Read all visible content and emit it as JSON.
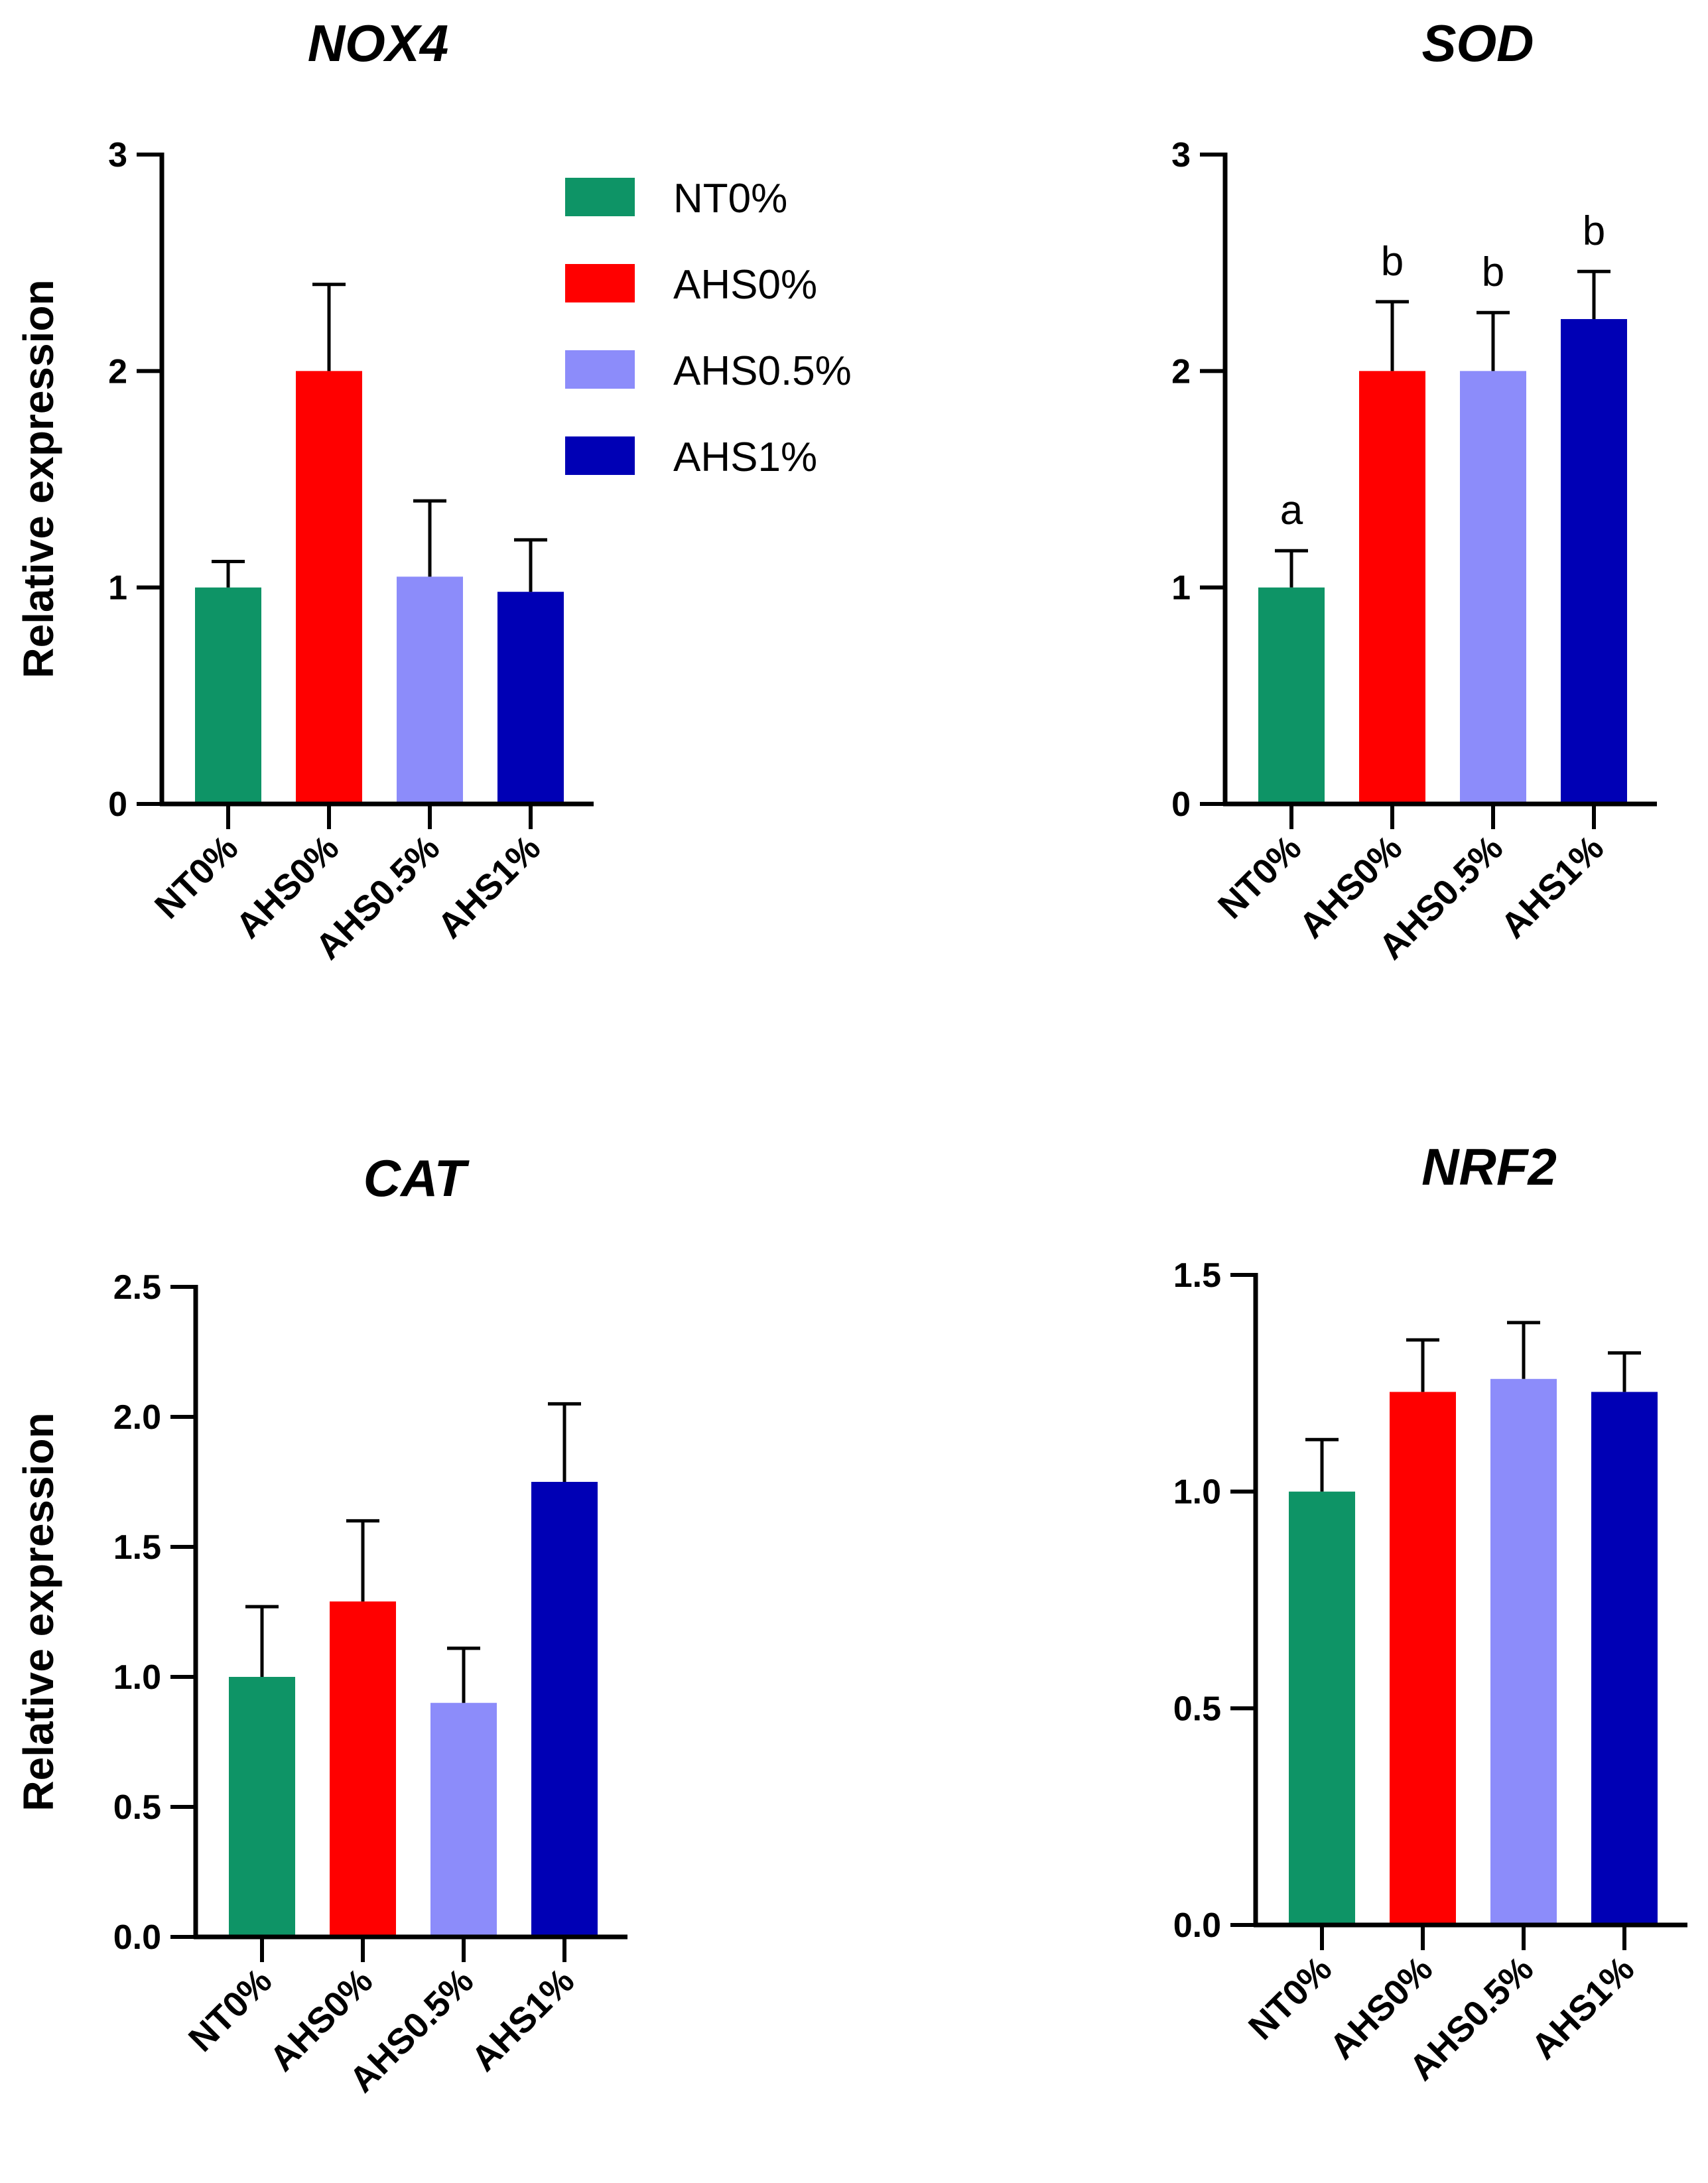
{
  "colors": {
    "NT0%": "#0e9466",
    "AHS0%": "#ff0000",
    "AHS0.5%": "#8c8cfa",
    "AHS1%": "#0000b5"
  },
  "legend": {
    "entries": [
      "NT0%",
      "AHS0%",
      "AHS0.5%",
      "AHS1%"
    ]
  },
  "chart_data": [
    {
      "type": "bar",
      "title": "NOX4",
      "ylabel": "Relative expression",
      "xlabel": "",
      "categories": [
        "NT0%",
        "AHS0%",
        "AHS0.5%",
        "AHS1%"
      ],
      "values": [
        1.0,
        2.0,
        1.05,
        0.98
      ],
      "errors": [
        0.12,
        0.4,
        0.35,
        0.24
      ],
      "ylim": [
        0,
        3
      ],
      "yticks": [
        0,
        1,
        2,
        3
      ],
      "yticklabels": [
        "0",
        "1",
        "2",
        "3"
      ],
      "significance": []
    },
    {
      "type": "bar",
      "title": "SOD",
      "ylabel": "",
      "xlabel": "",
      "categories": [
        "NT0%",
        "AHS0%",
        "AHS0.5%",
        "AHS1%"
      ],
      "values": [
        1.0,
        2.0,
        2.0,
        2.24
      ],
      "errors": [
        0.17,
        0.32,
        0.27,
        0.22
      ],
      "ylim": [
        0,
        3
      ],
      "yticks": [
        0,
        1,
        2,
        3
      ],
      "yticklabels": [
        "0",
        "1",
        "2",
        "3"
      ],
      "significance": [
        "a",
        "b",
        "b",
        "b"
      ]
    },
    {
      "type": "bar",
      "title": "CAT",
      "ylabel": "Relative expression",
      "xlabel": "",
      "categories": [
        "NT0%",
        "AHS0%",
        "AHS0.5%",
        "AHS1%"
      ],
      "values": [
        1.0,
        1.29,
        0.9,
        1.75
      ],
      "errors": [
        0.27,
        0.31,
        0.21,
        0.3
      ],
      "ylim": [
        0,
        2.5
      ],
      "yticks": [
        0,
        0.5,
        1,
        1.5,
        2,
        2.5
      ],
      "yticklabels": [
        "0.0",
        "0.5",
        "1.0",
        "1.5",
        "2.0",
        "2.5"
      ],
      "significance": []
    },
    {
      "type": "bar",
      "title": "NRF2",
      "ylabel": "",
      "xlabel": "",
      "categories": [
        "NT0%",
        "AHS0%",
        "AHS0.5%",
        "AHS1%"
      ],
      "values": [
        1.0,
        1.23,
        1.26,
        1.23
      ],
      "errors": [
        0.12,
        0.12,
        0.13,
        0.09
      ],
      "ylim": [
        0,
        1.5
      ],
      "yticks": [
        0,
        0.5,
        1,
        1.5
      ],
      "yticklabels": [
        "0.0",
        "0.5",
        "1.0",
        "1.5"
      ],
      "significance": []
    }
  ]
}
